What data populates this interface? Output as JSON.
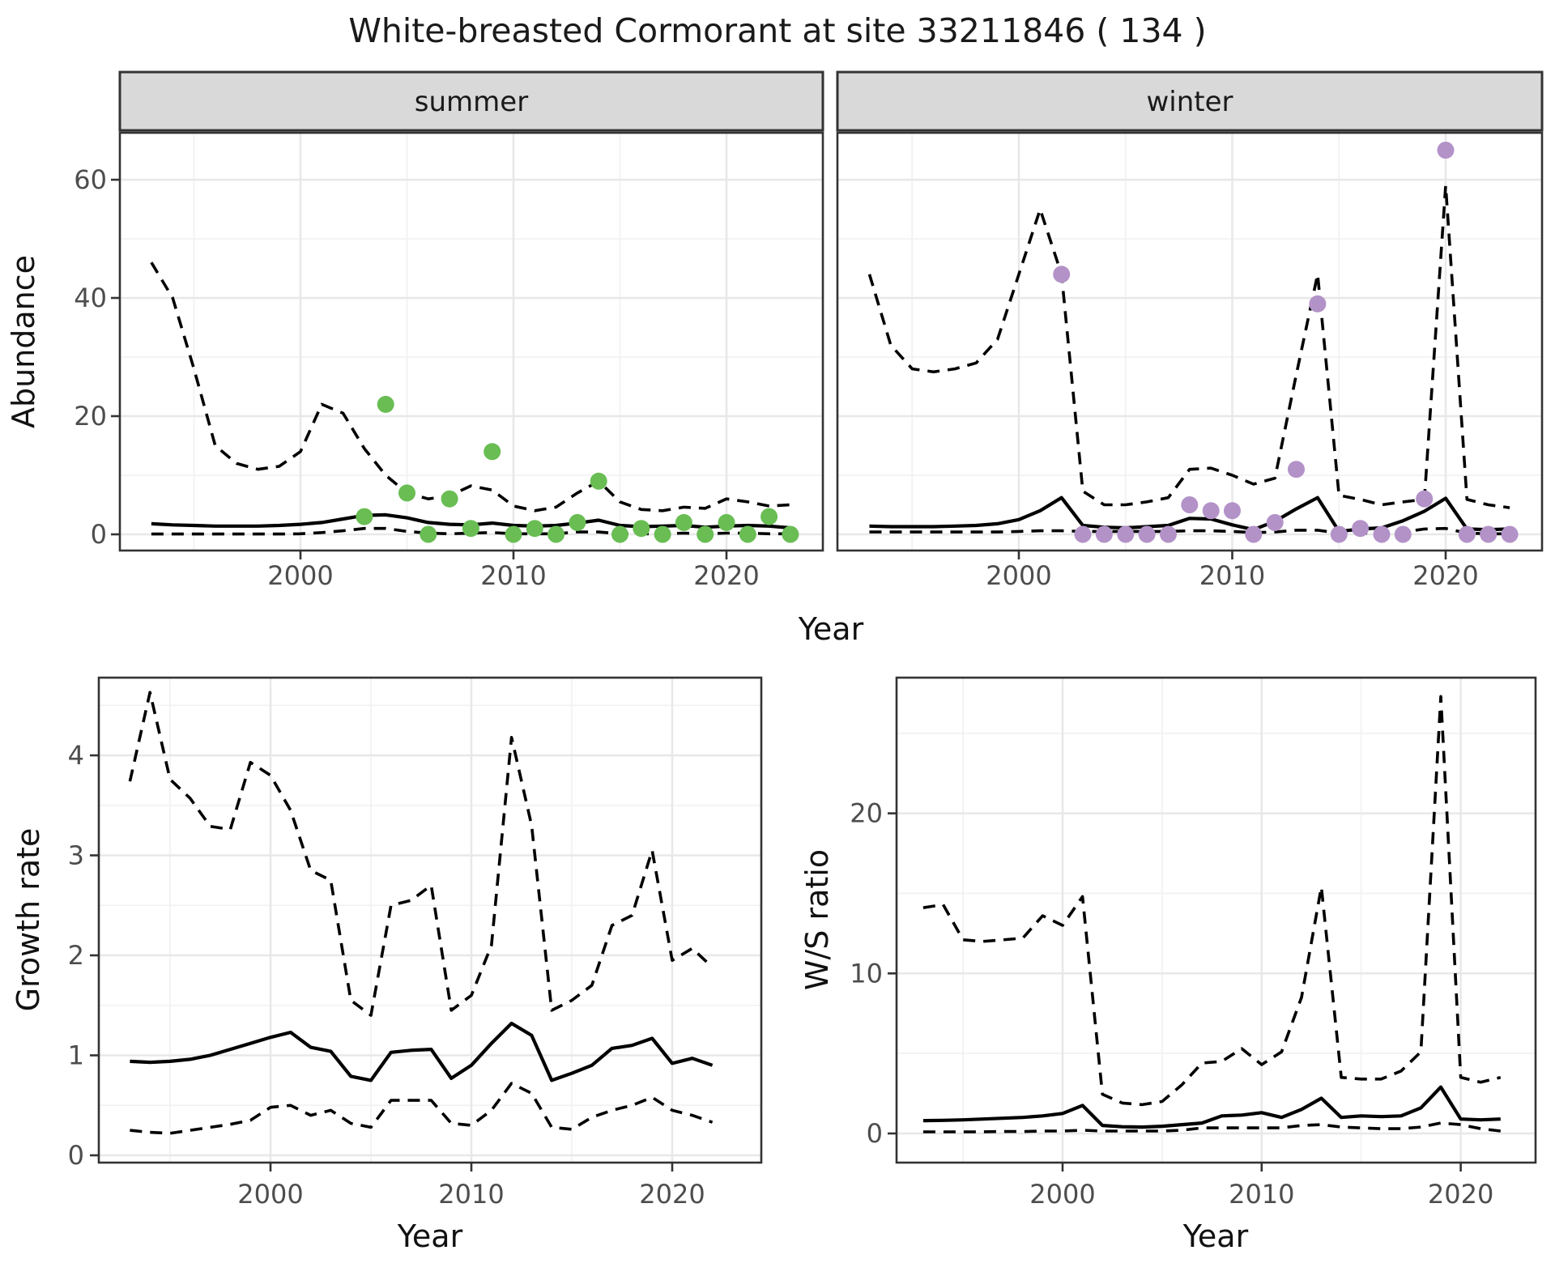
{
  "title": "White-breasted Cormorant at site 33211846 ( 134 )",
  "facets": {
    "summer": "summer",
    "winter": "winter"
  },
  "axis_labels": {
    "x": "Year",
    "y_abundance": "Abundance",
    "y_growth": "Growth rate",
    "y_ws": "W/S ratio"
  },
  "colors": {
    "summer_point": "#69bd53",
    "winter_point": "#b392c8",
    "line": "#000000",
    "grid_major": "#e8e8e8",
    "grid_minor": "#f2f2f2",
    "panel_border": "#333333",
    "strip_bg": "#d9d9d9",
    "tick_mark": "#333333",
    "tick_text": "#4d4d4d",
    "panel_bg": "#ffffff"
  },
  "chart_data": [
    {
      "id": "abundance_summer",
      "type": "line",
      "facet": "summer",
      "xlabel": "Year",
      "ylabel": "Abundance",
      "xlim": [
        1991.5,
        2024.5
      ],
      "ylim": [
        -2,
        68.5
      ],
      "xticks": [
        2000,
        2010,
        2020
      ],
      "xminor": [
        1995,
        2005,
        2015
      ],
      "yticks": [
        0,
        20,
        40,
        60
      ],
      "yminor": [
        10,
        30,
        50
      ],
      "years": [
        1993,
        1994,
        1995,
        1996,
        1997,
        1998,
        1999,
        2000,
        2001,
        2002,
        2003,
        2004,
        2005,
        2006,
        2007,
        2008,
        2009,
        2010,
        2011,
        2012,
        2013,
        2014,
        2015,
        2016,
        2017,
        2018,
        2019,
        2020,
        2021,
        2022,
        2023
      ],
      "series": [
        {
          "name": "upper_ci",
          "style": "dashed",
          "values": [
            46,
            40,
            28,
            15,
            12,
            11,
            11.5,
            14,
            22,
            20.5,
            14.5,
            10,
            7,
            6,
            6.5,
            8.2,
            7.5,
            4.8,
            4,
            4.6,
            7,
            9,
            5.5,
            4.2,
            4,
            4.6,
            4.4,
            6,
            5.5,
            4.8,
            5
          ]
        },
        {
          "name": "mean",
          "style": "solid",
          "values": [
            1.8,
            1.6,
            1.5,
            1.4,
            1.4,
            1.4,
            1.5,
            1.7,
            2.0,
            2.6,
            3.2,
            3.3,
            2.8,
            2.0,
            1.7,
            1.6,
            1.9,
            1.5,
            1.4,
            1.5,
            1.9,
            2.4,
            1.5,
            1.3,
            1.4,
            1.5,
            1.2,
            1.4,
            1.5,
            1.4,
            1.1
          ]
        },
        {
          "name": "lower_ci",
          "style": "dashed",
          "values": [
            0.05,
            0.05,
            0.05,
            0.05,
            0.05,
            0.05,
            0.05,
            0.1,
            0.3,
            0.6,
            1.0,
            1.0,
            0.5,
            0.2,
            0.1,
            0.2,
            0.3,
            0.1,
            0.1,
            0.1,
            0.4,
            0.4,
            0.1,
            0.1,
            0.1,
            0.2,
            0.1,
            0.2,
            0.2,
            0.1,
            0.1
          ]
        }
      ],
      "points": {
        "name": "observed_abundance_summer",
        "color_key": "summer_point",
        "years": [
          2003,
          2004,
          2005,
          2006,
          2007,
          2008,
          2009,
          2010,
          2011,
          2012,
          2013,
          2014,
          2015,
          2016,
          2017,
          2018,
          2019,
          2020,
          2021,
          2022,
          2023
        ],
        "values": [
          3,
          22,
          7,
          0,
          6,
          1,
          14,
          0,
          1,
          0,
          2,
          9,
          0,
          1,
          0,
          2,
          0,
          2,
          0,
          3,
          0
        ]
      }
    },
    {
      "id": "abundance_winter",
      "type": "line",
      "facet": "winter",
      "xlabel": "Year",
      "ylabel": "Abundance",
      "xlim": [
        1991.5,
        2024.5
      ],
      "ylim": [
        -2,
        68.5
      ],
      "xticks": [
        2000,
        2010,
        2020
      ],
      "xminor": [
        1995,
        2005,
        2015
      ],
      "yticks": [
        0,
        20,
        40,
        60
      ],
      "yminor": [
        10,
        30,
        50
      ],
      "years": [
        1993,
        1994,
        1995,
        1996,
        1997,
        1998,
        1999,
        2000,
        2001,
        2002,
        2003,
        2004,
        2005,
        2006,
        2007,
        2008,
        2009,
        2010,
        2011,
        2012,
        2013,
        2014,
        2015,
        2016,
        2017,
        2018,
        2019,
        2020,
        2021,
        2022,
        2023
      ],
      "series": [
        {
          "name": "upper_ci",
          "style": "dashed",
          "values": [
            44,
            32,
            28,
            27.5,
            28,
            29,
            33,
            44,
            55,
            44,
            7.3,
            5,
            5,
            5.5,
            6.2,
            11,
            11.2,
            10,
            8.5,
            9.5,
            27,
            44,
            6.6,
            5.9,
            5,
            5.5,
            5.9,
            59,
            5.9,
            5,
            4.5
          ]
        },
        {
          "name": "mean",
          "style": "solid",
          "values": [
            1.4,
            1.3,
            1.3,
            1.3,
            1.4,
            1.5,
            1.8,
            2.5,
            4.0,
            6.2,
            1.5,
            1.2,
            1.1,
            1.3,
            1.5,
            2.7,
            2.6,
            1.6,
            0.8,
            2.2,
            4.3,
            6.2,
            0.5,
            0.9,
            1.1,
            2.3,
            3.9,
            6.1,
            0.9,
            0.8,
            0.9
          ]
        },
        {
          "name": "lower_ci",
          "style": "dashed",
          "values": [
            0.4,
            0.4,
            0.4,
            0.4,
            0.4,
            0.4,
            0.4,
            0.5,
            0.6,
            0.6,
            0.5,
            0.5,
            0.5,
            0.5,
            0.5,
            0.6,
            0.6,
            0.5,
            0.3,
            0.4,
            0.7,
            0.7,
            0.2,
            0.2,
            0.2,
            0.4,
            0.9,
            1.0,
            0.2,
            0.1,
            0.1
          ]
        }
      ],
      "points": {
        "name": "observed_abundance_winter",
        "color_key": "winter_point",
        "years": [
          2002,
          2003,
          2004,
          2005,
          2006,
          2007,
          2008,
          2009,
          2010,
          2011,
          2012,
          2013,
          2014,
          2015,
          2016,
          2017,
          2018,
          2019,
          2020,
          2021,
          2022,
          2023
        ],
        "values": [
          44,
          0,
          0,
          0,
          0,
          0,
          5,
          4,
          4,
          0,
          2,
          11,
          39,
          0,
          1,
          0,
          0,
          6,
          65,
          0,
          0,
          0
        ]
      }
    },
    {
      "id": "growth_rate",
      "type": "line",
      "facet": null,
      "xlabel": "Year",
      "ylabel": "Growth rate",
      "xlim": [
        1991.5,
        2024.5
      ],
      "ylim": [
        0,
        4.8
      ],
      "xticks": [
        2000,
        2010,
        2020
      ],
      "xminor": [
        1995,
        2005,
        2015
      ],
      "yticks": [
        0,
        1,
        2,
        3,
        4
      ],
      "yminor": [
        0.5,
        1.5,
        2.5,
        3.5,
        4.5
      ],
      "years": [
        1993,
        1994,
        1995,
        1996,
        1997,
        1998,
        1999,
        2000,
        2001,
        2002,
        2003,
        2004,
        2005,
        2006,
        2007,
        2008,
        2009,
        2010,
        2011,
        2012,
        2013,
        2014,
        2015,
        2016,
        2017,
        2018,
        2019,
        2020,
        2021,
        2022
      ],
      "series": [
        {
          "name": "upper_ci",
          "style": "dashed",
          "values": [
            3.74,
            4.63,
            3.76,
            3.57,
            3.29,
            3.26,
            3.93,
            3.8,
            3.45,
            2.85,
            2.75,
            1.55,
            1.4,
            2.5,
            2.55,
            2.7,
            1.45,
            1.6,
            2.1,
            4.18,
            3.3,
            1.45,
            1.55,
            1.7,
            2.3,
            2.4,
            3.05,
            1.95,
            2.07,
            1.88
          ]
        },
        {
          "name": "mean",
          "style": "solid",
          "values": [
            0.94,
            0.93,
            0.94,
            0.96,
            1.0,
            1.06,
            1.12,
            1.18,
            1.23,
            1.08,
            1.04,
            0.79,
            0.75,
            1.03,
            1.05,
            1.06,
            0.77,
            0.9,
            1.12,
            1.32,
            1.2,
            0.75,
            0.82,
            0.9,
            1.07,
            1.1,
            1.17,
            0.92,
            0.97,
            0.9
          ]
        },
        {
          "name": "lower_ci",
          "style": "dashed",
          "values": [
            0.25,
            0.23,
            0.22,
            0.25,
            0.28,
            0.31,
            0.35,
            0.48,
            0.5,
            0.4,
            0.45,
            0.32,
            0.28,
            0.55,
            0.55,
            0.55,
            0.32,
            0.3,
            0.45,
            0.72,
            0.62,
            0.28,
            0.26,
            0.38,
            0.45,
            0.5,
            0.58,
            0.45,
            0.4,
            0.33
          ]
        }
      ],
      "points": null
    },
    {
      "id": "ws_ratio",
      "type": "line",
      "facet": null,
      "xlabel": "Year",
      "ylabel": "W/S ratio",
      "xlim": [
        1991.5,
        2024.5
      ],
      "ylim": [
        -1.5,
        28.5
      ],
      "xticks": [
        2000,
        2010,
        2020
      ],
      "xminor": [
        1995,
        2005,
        2015
      ],
      "yticks": [
        0,
        10,
        20
      ],
      "yminor": [
        5,
        15,
        25
      ],
      "years": [
        1993,
        1994,
        1995,
        1996,
        1997,
        1998,
        1999,
        2000,
        2001,
        2002,
        2003,
        2004,
        2005,
        2006,
        2007,
        2008,
        2009,
        2010,
        2011,
        2012,
        2013,
        2014,
        2015,
        2016,
        2017,
        2018,
        2019,
        2020,
        2021,
        2022
      ],
      "series": [
        {
          "name": "upper_ci",
          "style": "dashed",
          "values": [
            14.1,
            14.3,
            12.1,
            12.0,
            12.1,
            12.2,
            13.6,
            13.0,
            14.8,
            2.45,
            1.9,
            1.8,
            2.0,
            3.05,
            4.4,
            4.5,
            5.3,
            4.3,
            5.1,
            8.5,
            15.4,
            3.5,
            3.4,
            3.4,
            3.9,
            5.1,
            27.3,
            3.5,
            3.2,
            3.5
          ]
        },
        {
          "name": "mean",
          "style": "solid",
          "values": [
            0.8,
            0.82,
            0.85,
            0.9,
            0.95,
            1.0,
            1.1,
            1.25,
            1.75,
            0.5,
            0.42,
            0.4,
            0.45,
            0.55,
            0.65,
            1.1,
            1.15,
            1.3,
            1.0,
            1.5,
            2.2,
            1.0,
            1.1,
            1.05,
            1.1,
            1.6,
            2.9,
            0.9,
            0.85,
            0.9
          ]
        },
        {
          "name": "lower_ci",
          "style": "dashed",
          "values": [
            0.1,
            0.1,
            0.1,
            0.1,
            0.12,
            0.12,
            0.15,
            0.15,
            0.2,
            0.15,
            0.15,
            0.15,
            0.15,
            0.2,
            0.35,
            0.35,
            0.35,
            0.35,
            0.35,
            0.5,
            0.55,
            0.4,
            0.35,
            0.3,
            0.3,
            0.4,
            0.65,
            0.55,
            0.3,
            0.15
          ]
        }
      ],
      "points": null
    }
  ]
}
